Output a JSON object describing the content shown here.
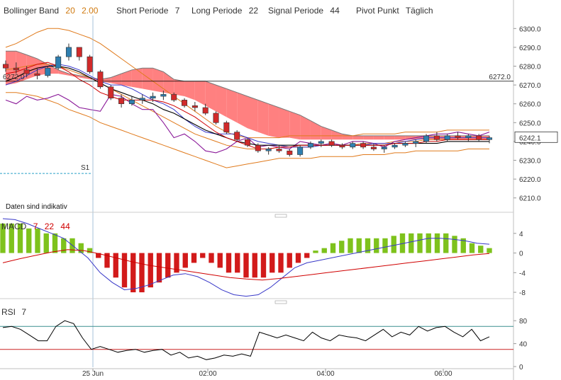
{
  "header": {
    "bollinger_label": "Bollinger Band",
    "bollinger_period": "20",
    "bollinger_dev": "2.00",
    "short_label": "Short Periode",
    "short_value": "7",
    "long_label": "Long Periode",
    "long_value": "22",
    "signal_label": "Signal Periode",
    "signal_value": "44",
    "pivot_label": "Pivot Punkt",
    "pivot_mode": "Täglich"
  },
  "notice": "Daten sind indikativ",
  "chart_data": [
    {
      "type": "candlestick",
      "panel": "price",
      "ylim": [
        6205,
        6305
      ],
      "y_ticks": [
        "6300.0",
        "6290.0",
        "6280.0",
        "6270.0",
        "6260.0",
        "6250.0",
        "6240.0",
        "6230.0",
        "6220.0",
        "6210.0"
      ],
      "x_ticks": [
        "25 Jun",
        "02:00",
        "04:00",
        "06:00"
      ],
      "reference_line": {
        "value": 6272.0,
        "label": "6272.0"
      },
      "last_price": {
        "value": 6242.1,
        "label": "6242.1"
      },
      "pivot_marker": {
        "label": "S1",
        "value": 6223
      },
      "colors": {
        "up": "#2f7fb0",
        "down": "#d12a2a",
        "cloud_bear": "#ff8080",
        "cloud_bull": "#7aaed6",
        "boll": "#e07a1c",
        "purple": "#8b1a99",
        "black": "#000000",
        "red": "#d00000",
        "blue": "#3a3acc"
      },
      "candles": [
        [
          6281,
          6283,
          6277,
          6279
        ],
        [
          6279,
          6282,
          6276,
          6278
        ],
        [
          6278,
          6280,
          6274,
          6276
        ],
        [
          6276,
          6279,
          6273,
          6275
        ],
        [
          6275,
          6280,
          6274,
          6279
        ],
        [
          6279,
          6286,
          6278,
          6285
        ],
        [
          6285,
          6292,
          6283,
          6290
        ],
        [
          6290,
          6289,
          6283,
          6285
        ],
        [
          6285,
          6286,
          6276,
          6277
        ],
        [
          6277,
          6278,
          6268,
          6269
        ],
        [
          6269,
          6270,
          6262,
          6263
        ],
        [
          6263,
          6265,
          6258,
          6260
        ],
        [
          6260,
          6264,
          6259,
          6262
        ],
        [
          6262,
          6265,
          6260,
          6263
        ],
        [
          6263,
          6266,
          6261,
          6264
        ],
        [
          6264,
          6267,
          6262,
          6265
        ],
        [
          6265,
          6266,
          6261,
          6262
        ],
        [
          6262,
          6263,
          6258,
          6259
        ],
        [
          6259,
          6261,
          6256,
          6258
        ],
        [
          6258,
          6260,
          6254,
          6255
        ],
        [
          6255,
          6256,
          6249,
          6250
        ],
        [
          6250,
          6251,
          6244,
          6245
        ],
        [
          6245,
          6246,
          6240,
          6241
        ],
        [
          6241,
          6242,
          6237,
          6238
        ],
        [
          6238,
          6239,
          6234,
          6235
        ],
        [
          6235,
          6237,
          6233,
          6236
        ],
        [
          6236,
          6238,
          6234,
          6235
        ],
        [
          6235,
          6236,
          6232,
          6233
        ],
        [
          6233,
          6238,
          6232,
          6237
        ],
        [
          6237,
          6240,
          6236,
          6239
        ],
        [
          6239,
          6241,
          6237,
          6240
        ],
        [
          6240,
          6241,
          6237,
          6238
        ],
        [
          6238,
          6239,
          6236,
          6237
        ],
        [
          6237,
          6240,
          6236,
          6239
        ],
        [
          6239,
          6240,
          6236,
          6237
        ],
        [
          6237,
          6239,
          6235,
          6236
        ],
        [
          6236,
          6238,
          6234,
          6237
        ],
        [
          6237,
          6239,
          6236,
          6238
        ],
        [
          6238,
          6240,
          6237,
          6239
        ],
        [
          6239,
          6241,
          6237,
          6240
        ],
        [
          6240,
          6244,
          6239,
          6243
        ],
        [
          6243,
          6245,
          6240,
          6241
        ],
        [
          6241,
          6244,
          6240,
          6243
        ],
        [
          6243,
          6245,
          6241,
          6242
        ],
        [
          6242,
          6244,
          6240,
          6243
        ],
        [
          6243,
          6244,
          6240,
          6241
        ],
        [
          6241,
          6243,
          6239,
          6242
        ]
      ],
      "bollinger_upper": [
        6290,
        6292,
        6295,
        6298,
        6300,
        6300,
        6299,
        6297,
        6295,
        6292,
        6288,
        6284,
        6280,
        6276,
        6272,
        6268,
        6264,
        6260,
        6256,
        6252,
        6248,
        6245,
        6243,
        6242,
        6242,
        6242,
        6242,
        6243,
        6243,
        6243,
        6243,
        6243,
        6243,
        6243,
        6244,
        6244,
        6244,
        6244,
        6245,
        6245,
        6245,
        6245,
        6246,
        6246,
        6246,
        6246,
        6246
      ],
      "bollinger_middle": [
        6278,
        6279,
        6280,
        6281,
        6281,
        6280,
        6278,
        6276,
        6274,
        6271,
        6268,
        6265,
        6262,
        6259,
        6256,
        6253,
        6250,
        6247,
        6244,
        6242,
        6240,
        6238,
        6237,
        6236,
        6236,
        6236,
        6237,
        6237,
        6237,
        6237,
        6238,
        6238,
        6238,
        6238,
        6239,
        6239,
        6239,
        6240,
        6240,
        6240,
        6241,
        6241,
        6241,
        6241,
        6241,
        6241,
        6241
      ],
      "bollinger_lower": [
        6266,
        6266,
        6265,
        6264,
        6262,
        6260,
        6257,
        6255,
        6253,
        6250,
        6248,
        6246,
        6244,
        6242,
        6240,
        6238,
        6236,
        6234,
        6232,
        6230,
        6228,
        6226,
        6227,
        6228,
        6229,
        6230,
        6231,
        6231,
        6231,
        6231,
        6232,
        6232,
        6232,
        6232,
        6233,
        6233,
        6233,
        6234,
        6234,
        6235,
        6235,
        6235,
        6235,
        6235,
        6236,
        6236,
        6236
      ],
      "cloud_a": [
        6270,
        6271,
        6273,
        6275,
        6276,
        6276,
        6275,
        6274,
        6273,
        6272,
        6271,
        6270,
        6269,
        6268,
        6267,
        6266,
        6265,
        6264,
        6262,
        6259,
        6256,
        6253,
        6250,
        6247,
        6245,
        6243,
        6242,
        6242,
        6241,
        6241,
        6241,
        6241,
        6241,
        6241,
        6241,
        6241,
        6241,
        6241,
        6241,
        6241,
        6241,
        6241,
        6241,
        6241,
        6241,
        6241,
        6241
      ],
      "cloud_b": [
        6288,
        6288,
        6286,
        6284,
        6281,
        6278,
        6276,
        6275,
        6274,
        6273,
        6274,
        6276,
        6278,
        6279,
        6279,
        6277,
        6273,
        6272,
        6272,
        6272,
        6270,
        6268,
        6266,
        6264,
        6262,
        6260,
        6258,
        6256,
        6254,
        6251,
        6248,
        6246,
        6244,
        6243,
        6243,
        6243,
        6243,
        6243,
        6243,
        6243,
        6243,
        6243,
        6243,
        6243,
        6243,
        6243,
        6243
      ],
      "red_line": [
        6276,
        6277,
        6279,
        6281,
        6282,
        6280,
        6277,
        6273,
        6270,
        6266,
        6264,
        6262,
        6262,
        6262,
        6262,
        6261,
        6259,
        6256,
        6253,
        6249,
        6245,
        6242,
        6240,
        6238,
        6236,
        6236,
        6237,
        6237,
        6238,
        6238,
        6238,
        6238,
        6238,
        6238,
        6238,
        6238,
        6238,
        6239,
        6239,
        6239,
        6240,
        6240,
        6241,
        6241,
        6241,
        6241,
        6241
      ],
      "black_line": [
        6272,
        6274,
        6277,
        6279,
        6280,
        6280,
        6279,
        6277,
        6274,
        6271,
        6268,
        6266,
        6264,
        6262,
        6260,
        6257,
        6255,
        6252,
        6249,
        6246,
        6244,
        6242,
        6240,
        6239,
        6238,
        6238,
        6238,
        6238,
        6238,
        6238,
        6238,
        6238,
        6238,
        6238,
        6238,
        6238,
        6238,
        6239,
        6239,
        6239,
        6239,
        6239,
        6240,
        6240,
        6240,
        6240,
        6240
      ],
      "blue_line": [
        6270,
        6272,
        6275,
        6278,
        6280,
        6281,
        6280,
        6278,
        6275,
        6272,
        6270,
        6270,
        6268,
        6265,
        6262,
        6260,
        6257,
        6252,
        6248,
        6245,
        6244,
        6244,
        6244,
        6242,
        6240,
        6239,
        6238,
        6237,
        6237,
        6237,
        6238,
        6238,
        6238,
        6238,
        6238,
        6239,
        6239,
        6239,
        6240,
        6241,
        6242,
        6242,
        6242,
        6242,
        6242,
        6242,
        6242
      ],
      "purple_line": [
        6262,
        6260,
        6264,
        6262,
        6263,
        6265,
        6262,
        6258,
        6257,
        6256,
        6265,
        6264,
        6260,
        6257,
        6257,
        6250,
        6242,
        6244,
        6240,
        6235,
        6234,
        6236,
        6240,
        6242,
        6237,
        6238,
        6237,
        6236,
        6240,
        6239,
        6238,
        6239,
        6238,
        6240,
        6240,
        6239,
        6237,
        6240,
        6241,
        6242,
        6243,
        6244,
        6244,
        6245,
        6244,
        6243,
        6245
      ]
    },
    {
      "type": "bar+line",
      "panel": "macd",
      "title": "MACD",
      "params": [
        "7",
        "22",
        "44"
      ],
      "ylim": [
        -9,
        7
      ],
      "y_ticks": [
        "4",
        "0",
        "-4",
        "-8"
      ],
      "colors": {
        "pos": "#7ec21c",
        "neg": "#d21a1a",
        "macd": "#3838c8",
        "signal": "#d00000"
      },
      "histogram": [
        6,
        6,
        6,
        5,
        5,
        4,
        4,
        3,
        3,
        2,
        1,
        -1,
        -3,
        -5,
        -7,
        -8,
        -8,
        -7,
        -6,
        -5,
        -4,
        -3,
        -2,
        -1,
        -2,
        -3,
        -4,
        -4,
        -5,
        -5,
        -5,
        -4,
        -4,
        -3,
        -2,
        -1,
        0.5,
        1,
        2,
        2.5,
        3,
        3,
        3,
        3,
        3,
        3.5,
        4,
        4,
        4,
        4,
        4,
        4,
        3.5,
        3,
        2,
        1.5,
        1
      ],
      "macd": [
        7,
        6.8,
        6,
        5,
        4,
        3,
        1,
        -1,
        -4,
        -6,
        -7.5,
        -7.2,
        -6.5,
        -5.5,
        -4.5,
        -4.2,
        -4.8,
        -6,
        -7.5,
        -8.5,
        -8.8,
        -8.5,
        -7,
        -5,
        -3,
        -2,
        -1.5,
        -1,
        -0.5,
        0,
        0.5,
        1,
        1.5,
        2,
        2.5,
        3,
        3,
        2.8,
        2.5,
        2,
        1.8
      ],
      "signal": [
        -2,
        -1.2,
        -0.5,
        0.2,
        0.7,
        0.5,
        -0.2,
        -1,
        -1.8,
        -2.5,
        -3,
        -3.5,
        -4,
        -4.5,
        -5,
        -5.3,
        -5.5,
        -5.2,
        -4.8,
        -4.4,
        -4,
        -3.6,
        -3.2,
        -2.8,
        -2.4,
        -2,
        -1.6,
        -1.2,
        -0.8,
        -0.4,
        -0.1
      ]
    },
    {
      "type": "line",
      "panel": "rsi",
      "title": "RSI",
      "params": [
        "7"
      ],
      "ylim": [
        0,
        100
      ],
      "y_ticks": [
        "80",
        "40",
        "0"
      ],
      "levels": [
        70,
        30
      ],
      "values": [
        68,
        70,
        65,
        55,
        45,
        45,
        70,
        80,
        75,
        50,
        30,
        35,
        30,
        25,
        28,
        30,
        25,
        28,
        30,
        20,
        25,
        15,
        18,
        12,
        15,
        20,
        18,
        22,
        18,
        60,
        55,
        50,
        55,
        50,
        45,
        60,
        50,
        45,
        55,
        52,
        50,
        45,
        55,
        65,
        52,
        60,
        55,
        70,
        62,
        68,
        70,
        60,
        52,
        65,
        45,
        52
      ]
    }
  ]
}
